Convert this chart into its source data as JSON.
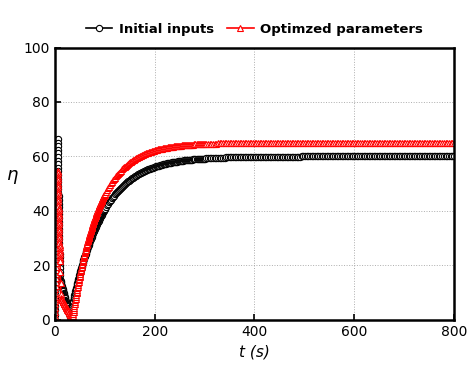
{
  "title": "",
  "xlabel": "t (s)",
  "ylabel": "η",
  "xlim": [
    0,
    800
  ],
  "ylim": [
    0,
    100
  ],
  "xticks": [
    0,
    200,
    400,
    600,
    800
  ],
  "yticks": [
    0,
    20,
    40,
    60,
    80,
    100
  ],
  "legend": [
    "Initial inputs",
    "Optimzed parameters"
  ],
  "line1_color": "black",
  "line2_color": "red",
  "marker1": "o",
  "marker2": "^",
  "background_color": "#ffffff",
  "grid_color": "#999999",
  "marker_size": 4.5,
  "linewidth": 1.2
}
